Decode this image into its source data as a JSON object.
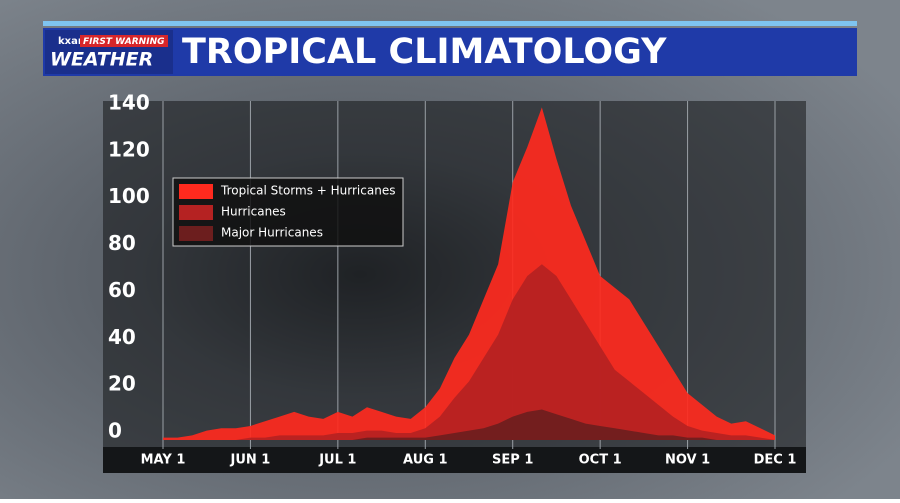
{
  "header": {
    "logo_top": "kxan",
    "logo_badge": "FIRST WARNING",
    "logo_main": "WEATHER"
  },
  "chart_data": {
    "type": "area",
    "title": "TROPICAL CLIMATOLOGY",
    "categories": [
      "MAY 1",
      null,
      null,
      null,
      null,
      null,
      "JUN 1",
      null,
      null,
      null,
      null,
      null,
      "JUL 1",
      null,
      null,
      null,
      null,
      null,
      "AUG 1",
      null,
      null,
      null,
      null,
      null,
      "SEP 1",
      null,
      null,
      null,
      null,
      null,
      "OCT 1",
      null,
      null,
      null,
      null,
      null,
      "NOV 1",
      null,
      null,
      null,
      null,
      null,
      "DEC 1"
    ],
    "series": [
      {
        "name": "Tropical Storms + Hurricanes",
        "color": "#ff2a1e",
        "values": [
          1,
          1,
          2,
          4,
          5,
          5,
          6,
          8,
          10,
          12,
          10,
          9,
          12,
          10,
          14,
          12,
          10,
          9,
          14,
          22,
          35,
          45,
          60,
          75,
          110,
          125,
          142,
          120,
          100,
          85,
          70,
          65,
          60,
          50,
          40,
          30,
          20,
          15,
          10,
          7,
          8,
          5,
          2
        ]
      },
      {
        "name": "Hurricanes",
        "color": "#b52222",
        "values": [
          0,
          0,
          0,
          0,
          0,
          0,
          1,
          1,
          2,
          2,
          2,
          2,
          3,
          3,
          4,
          4,
          3,
          3,
          5,
          10,
          18,
          25,
          35,
          45,
          60,
          70,
          75,
          70,
          60,
          50,
          40,
          30,
          25,
          20,
          15,
          10,
          6,
          4,
          3,
          2,
          2,
          1,
          0
        ]
      },
      {
        "name": "Major Hurricanes",
        "color": "#6c1e1e",
        "values": [
          0,
          0,
          0,
          0,
          0,
          0,
          0,
          0,
          0,
          0,
          0,
          0,
          0,
          0,
          1,
          1,
          1,
          1,
          1,
          2,
          3,
          4,
          5,
          7,
          10,
          12,
          13,
          11,
          9,
          7,
          6,
          5,
          4,
          3,
          2,
          2,
          1,
          1,
          0,
          0,
          0,
          0,
          0
        ]
      }
    ],
    "ylim": [
      0,
      140
    ],
    "yticks": [
      0,
      20,
      40,
      60,
      80,
      100,
      120,
      140
    ],
    "xgrid": true,
    "legend": "upper left"
  }
}
